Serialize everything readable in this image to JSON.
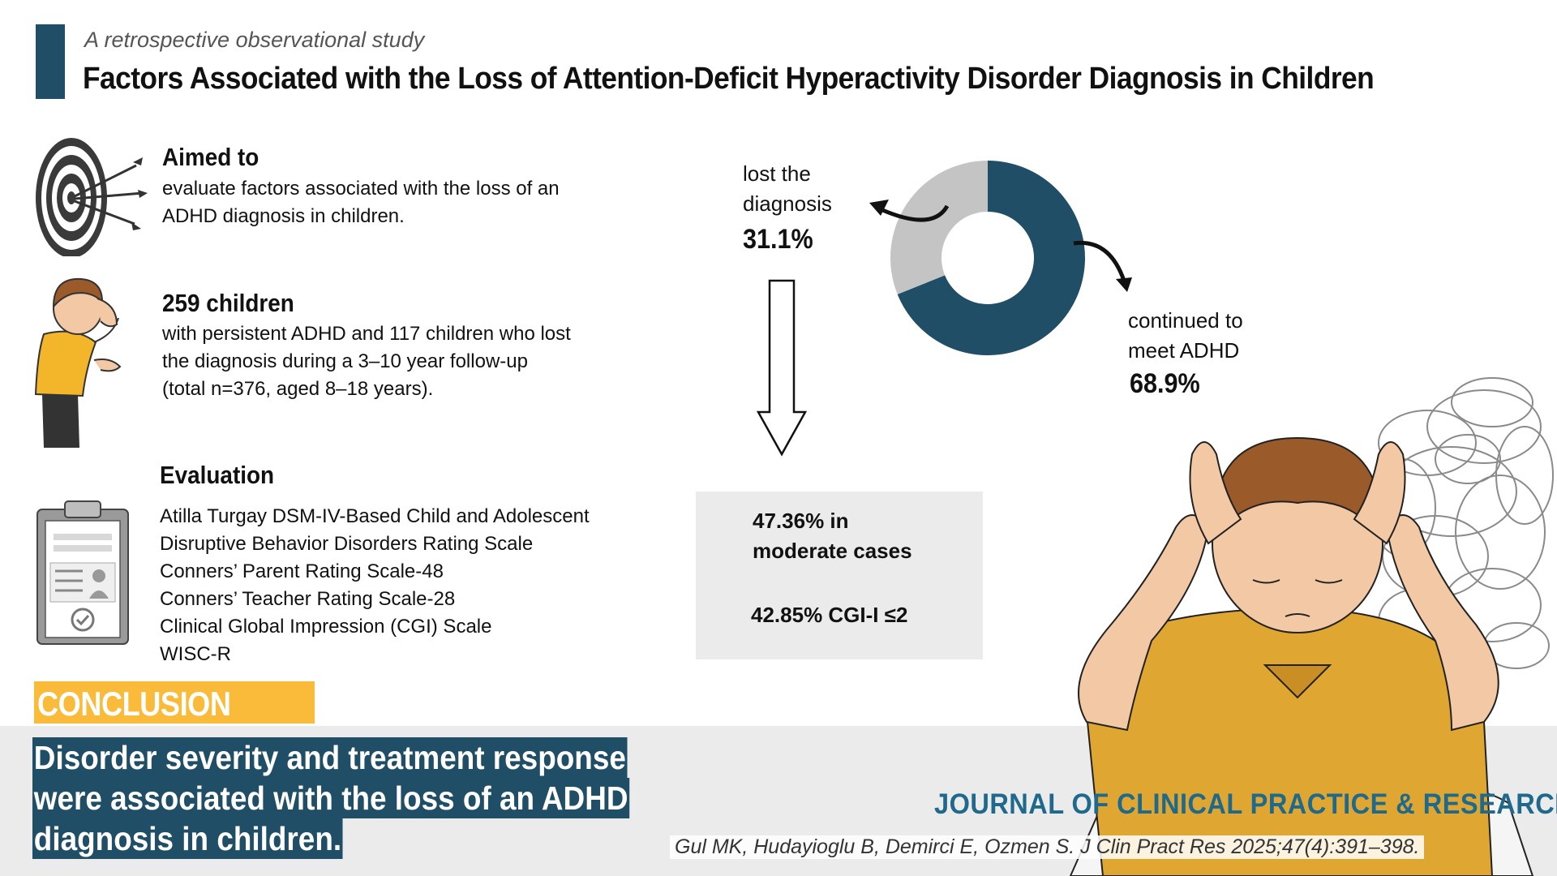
{
  "header": {
    "subtitle": "A retrospective observational study",
    "title": "Factors Associated with the Loss of Attention-Deficit Hyperactivity Disorder Diagnosis in Children"
  },
  "aim": {
    "heading": "Aimed to",
    "lines": [
      "evaluate factors associated with the loss of an",
      "ADHD diagnosis in children."
    ]
  },
  "participants": {
    "heading": "259 children",
    "lines": [
      "with persistent ADHD and 117 children who lost",
      "the diagnosis during a 3–10 year follow-up",
      "(total n=376, aged 8–18 years)."
    ]
  },
  "evaluation": {
    "heading": "Evaluation",
    "items": [
      "Atilla Turgay DSM-IV-Based Child and Adolescent",
      "Disruptive Behavior Disorders Rating Scale",
      "Conners’ Parent Rating Scale-48",
      "Conners’ Teacher Rating Scale-28",
      "Clinical Global Impression (CGI) Scale",
      "WISC-R"
    ]
  },
  "donut": {
    "lost_label_1": "lost the",
    "lost_label_2": "diagnosis",
    "lost_pct": "31.1%",
    "cont_label_1": "continued to",
    "cont_label_2": "meet ADHD",
    "cont_pct": "68.9%",
    "lost_value": 31.1,
    "cont_value": 68.9,
    "lost_color": "#c4c4c4",
    "cont_color": "#1f4e66"
  },
  "findings": {
    "line1": "47.36% in",
    "line2": "moderate cases",
    "line3": "42.85% CGI-I ≤2"
  },
  "conclusion": {
    "tag": "CONCLUSION",
    "lines": [
      "Disorder severity and treatment response",
      "were associated with the loss of an ADHD",
      "diagnosis in children."
    ]
  },
  "footer": {
    "journal": "JOURNAL OF CLINICAL PRACTICE & RESEARCH",
    "citation": "Gul MK, Hudayioglu B, Demirci E, Ozmen S.   J Clin Pract Res 2025;47(4):391–398."
  },
  "icons": [
    "target-icon",
    "child-icon",
    "clipboard-icon",
    "down-arrow-icon",
    "curved-arrow-icon",
    "scribble-icon",
    "stressed-child-illustration"
  ],
  "colors": {
    "accent": "#1f4e66",
    "highlight": "#fbbb3a",
    "panel": "#ebebeb",
    "journal": "#1f6a8c"
  }
}
